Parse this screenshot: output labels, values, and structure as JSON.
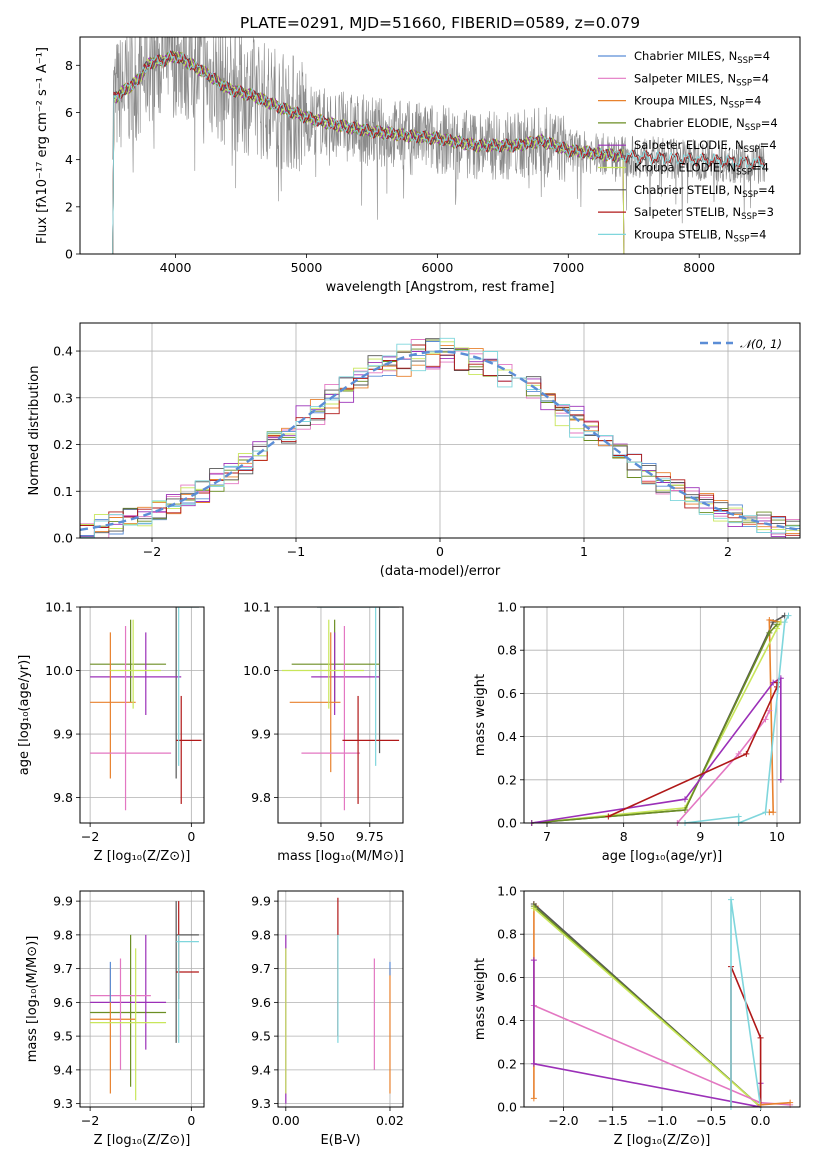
{
  "chart_data": [
    {
      "id": "spec",
      "type": "line",
      "title": "PLATE=0291, MJD=51660, FIBERID=0589, z=0.079",
      "xlabel": "wavelength [Angstrom, rest frame]",
      "ylabel": "Flux [f",
      "ylabel_full": "Flux [fλ10⁻¹⁷ erg cm⁻² s⁻¹ A⁻¹]",
      "xlim": [
        3270,
        8770
      ],
      "ylim": [
        0,
        9.2
      ],
      "xticks": [
        4000,
        5000,
        6000,
        7000,
        8000
      ],
      "yticks": [
        0,
        2,
        4,
        6,
        8
      ],
      "grid": false,
      "legend_position": "top-right",
      "legend": [
        {
          "name": "Chabrier MILES, N",
          "sub": "SSP",
          "tail": "=4",
          "color": "#5b8dd6"
        },
        {
          "name": "Salpeter MILES, N",
          "sub": "SSP",
          "tail": "=4",
          "color": "#e377c2"
        },
        {
          "name": "Kroupa MILES, N",
          "sub": "SSP",
          "tail": "=4",
          "color": "#e8812d"
        },
        {
          "name": "Chabrier ELODIE, N",
          "sub": "SSP",
          "tail": "=4",
          "color": "#6b8e23"
        },
        {
          "name": "Salpeter ELODIE, N",
          "sub": "SSP",
          "tail": "=4",
          "color": "#9b30b8"
        },
        {
          "name": "Kroupa ELODIE, N",
          "sub": "SSP",
          "tail": "=4",
          "color": "#c8e65a"
        },
        {
          "name": "Chabrier STELIB, N",
          "sub": "SSP",
          "tail": "=4",
          "color": "#555555"
        },
        {
          "name": "Salpeter STELIB, N",
          "sub": "SSP",
          "tail": "=3",
          "color": "#b01818"
        },
        {
          "name": "Kroupa STELIB, N",
          "sub": "SSP",
          "tail": "=4",
          "color": "#7fd6dc"
        }
      ],
      "continuum": [
        [
          3530,
          6.6
        ],
        [
          3700,
          7.3
        ],
        [
          3800,
          8.1
        ],
        [
          3900,
          8.2
        ],
        [
          4000,
          8.4
        ],
        [
          4100,
          8.1
        ],
        [
          4250,
          7.6
        ],
        [
          4400,
          7.0
        ],
        [
          4600,
          6.7
        ],
        [
          4800,
          6.2
        ],
        [
          5000,
          5.8
        ],
        [
          5200,
          5.5
        ],
        [
          5500,
          5.2
        ],
        [
          5800,
          5.0
        ],
        [
          6000,
          4.9
        ],
        [
          6300,
          4.6
        ],
        [
          6600,
          4.6
        ],
        [
          6800,
          4.8
        ],
        [
          7000,
          4.4
        ],
        [
          7300,
          4.2
        ],
        [
          7600,
          4.1
        ],
        [
          8000,
          4.0
        ],
        [
          8300,
          3.9
        ],
        [
          8500,
          3.85
        ]
      ],
      "data_start": 3520,
      "data_end": 8500,
      "model_start_ms": 3530,
      "model_end_ms": 7420,
      "model_start_st": 3530,
      "model_end_st": 8500
    },
    {
      "id": "hist",
      "type": "line",
      "xlabel": "(data-model)/error",
      "ylabel": "Normed distribution",
      "xlim": [
        -2.5,
        2.5
      ],
      "ylim": [
        0,
        0.46
      ],
      "xticks": [
        -2,
        -1,
        0,
        1,
        2
      ],
      "xtick_labels": [
        "−2",
        "−1",
        "0",
        "1",
        "2"
      ],
      "yticks": [
        0.0,
        0.1,
        0.2,
        0.3,
        0.4
      ],
      "ytick_labels": [
        "0.0",
        "0.1",
        "0.2",
        "0.3",
        "0.4"
      ],
      "grid": true,
      "legend": "𝒩(0, 1)",
      "bin_width": 0.1,
      "series": [
        {
          "color": "#5b8dd6"
        },
        {
          "color": "#e377c2"
        },
        {
          "color": "#e8812d"
        },
        {
          "color": "#6b8e23"
        },
        {
          "color": "#9b30b8"
        },
        {
          "color": "#c8e65a"
        },
        {
          "color": "#555555"
        },
        {
          "color": "#b01818"
        },
        {
          "color": "#7fd6dc"
        }
      ],
      "gauss_color": "#5b8dd6"
    },
    {
      "id": "ageZ",
      "type": "scatter",
      "xlabel": "Z [log₁₀(Z/Z⊙)]",
      "ylabel": "age  [log₁₀(age/yr)]",
      "xlim": [
        -2.2,
        0.25
      ],
      "ylim": [
        9.76,
        10.1
      ],
      "xticks": [
        -2,
        0
      ],
      "xtick_labels": [
        "−2",
        "0"
      ],
      "yticks": [
        9.8,
        9.9,
        10.0,
        10.1
      ],
      "ytick_labels": [
        "9.8",
        "9.9",
        "10.0",
        "10.1"
      ],
      "grid": true,
      "crosses": [
        {
          "x": -0.3,
          "y": 10.1,
          "x0": -0.3,
          "x1": 0.15,
          "y0": 9.83,
          "y1": 10.14,
          "color": "#555555"
        },
        {
          "x": -1.2,
          "y": 10.01,
          "x0": -2.0,
          "x1": -0.5,
          "y0": 9.95,
          "y1": 10.08,
          "color": "#6b8e23"
        },
        {
          "x": -0.9,
          "y": 9.99,
          "x0": -2.0,
          "x1": -0.2,
          "y0": 9.93,
          "y1": 10.06,
          "color": "#9b30b8"
        },
        {
          "x": -1.6,
          "y": 9.95,
          "x0": -2.0,
          "x1": -1.1,
          "y0": 9.83,
          "y1": 10.06,
          "color": "#e8812d"
        },
        {
          "x": -1.3,
          "y": 9.87,
          "x0": -2.0,
          "x1": -0.4,
          "y0": 9.78,
          "y1": 10.07,
          "color": "#e377c2"
        },
        {
          "x": -0.2,
          "y": 9.89,
          "x0": -0.3,
          "x1": 0.2,
          "y0": 9.79,
          "y1": 9.96,
          "color": "#b01818"
        },
        {
          "x": -0.25,
          "y": 10.1,
          "x0": -0.3,
          "x1": 0.15,
          "y0": 9.85,
          "y1": 10.12,
          "color": "#7fd6dc"
        },
        {
          "x": -1.15,
          "y": 10.0,
          "x0": -1.6,
          "x1": -0.6,
          "y0": 9.94,
          "y1": 10.08,
          "color": "#c8e65a"
        }
      ]
    },
    {
      "id": "ageM",
      "type": "scatter",
      "xlabel": "mass [log₁₀(M/M⊙)]",
      "ylabel": "",
      "xlim": [
        9.28,
        9.92
      ],
      "ylim": [
        9.76,
        10.1
      ],
      "xticks": [
        9.5,
        9.75
      ],
      "xtick_labels": [
        "9.50",
        "9.75"
      ],
      "yticks": [
        9.8,
        9.9,
        10.0,
        10.1
      ],
      "ytick_labels": [
        "9.8",
        "9.9",
        "10.0",
        "10.1"
      ],
      "grid": true,
      "crosses": [
        {
          "x": 9.8,
          "y": 10.1,
          "x0": 9.48,
          "x1": 9.9,
          "y0": 9.87,
          "y1": 10.14,
          "color": "#555555"
        },
        {
          "x": 9.57,
          "y": 10.01,
          "x0": 9.35,
          "x1": 9.8,
          "y0": 9.95,
          "y1": 10.08,
          "color": "#6b8e23"
        },
        {
          "x": 9.57,
          "y": 9.99,
          "x0": 9.45,
          "x1": 9.8,
          "y0": 9.93,
          "y1": 10.06,
          "color": "#9b30b8"
        },
        {
          "x": 9.55,
          "y": 9.95,
          "x0": 9.34,
          "x1": 9.6,
          "y0": 9.84,
          "y1": 10.06,
          "color": "#e8812d"
        },
        {
          "x": 9.62,
          "y": 9.87,
          "x0": 9.4,
          "x1": 9.7,
          "y0": 9.78,
          "y1": 10.07,
          "color": "#e377c2"
        },
        {
          "x": 9.69,
          "y": 9.89,
          "x0": 9.61,
          "x1": 9.9,
          "y0": 9.79,
          "y1": 9.96,
          "color": "#b01818"
        },
        {
          "x": 9.78,
          "y": 10.1,
          "x0": 9.48,
          "x1": 9.88,
          "y0": 9.85,
          "y1": 10.12,
          "color": "#7fd6dc"
        },
        {
          "x": 9.54,
          "y": 10.0,
          "x0": 9.3,
          "x1": 9.72,
          "y0": 9.94,
          "y1": 10.08,
          "color": "#c8e65a"
        }
      ]
    },
    {
      "id": "mwAge",
      "type": "line",
      "xlabel": "age  [log₁₀(age/yr)]",
      "ylabel": "mass weight",
      "xlim": [
        6.7,
        10.3
      ],
      "ylim": [
        0,
        1.0
      ],
      "xticks": [
        7,
        8,
        9,
        10
      ],
      "xtick_labels": [
        "7",
        "8",
        "9",
        "10"
      ],
      "yticks": [
        0.0,
        0.2,
        0.4,
        0.6,
        0.8,
        1.0
      ],
      "ytick_labels": [
        "0.0",
        "0.2",
        "0.4",
        "0.6",
        "0.8",
        "1.0"
      ],
      "grid": true,
      "series": [
        {
          "color": "#555555",
          "x": [
            6.8,
            8.8,
            9.95,
            10.1
          ],
          "y": [
            0.0,
            0.06,
            0.93,
            0.96
          ]
        },
        {
          "color": "#e8812d",
          "x": [
            9.9,
            9.95,
            9.9,
            10.05
          ],
          "y": [
            0.05,
            0.05,
            0.94,
            0.93
          ]
        },
        {
          "color": "#c8e65a",
          "x": [
            6.8,
            8.8,
            10.0,
            10.05
          ],
          "y": [
            0.0,
            0.07,
            0.9,
            0.93
          ]
        },
        {
          "color": "#6b8e23",
          "x": [
            6.8,
            8.8,
            9.9,
            10.0
          ],
          "y": [
            0.0,
            0.06,
            0.88,
            0.92
          ]
        },
        {
          "color": "#9b30b8",
          "x": [
            6.8,
            8.8,
            9.95,
            10.05,
            10.05
          ],
          "y": [
            0.0,
            0.11,
            0.65,
            0.67,
            0.2
          ]
        },
        {
          "color": "#e377c2",
          "x": [
            8.7,
            9.5,
            9.85,
            9.9
          ],
          "y": [
            0.0,
            0.32,
            0.48,
            0.52
          ]
        },
        {
          "color": "#b01818",
          "x": [
            7.8,
            9.6,
            10.0,
            10.0
          ],
          "y": [
            0.03,
            0.32,
            0.63,
            0.65
          ]
        },
        {
          "color": "#7fd6dc",
          "x": [
            8.8,
            9.5,
            9.5,
            9.85,
            10.1,
            10.15
          ],
          "y": [
            0.0,
            0.03,
            0.0,
            0.05,
            0.93,
            0.96
          ]
        }
      ]
    },
    {
      "id": "massZ",
      "type": "scatter",
      "xlabel": "Z [log₁₀(Z/Z⊙)]",
      "ylabel": "mass [log₁₀(M/M⊙)]",
      "xlim": [
        -2.2,
        0.25
      ],
      "ylim": [
        9.29,
        9.93
      ],
      "xticks": [
        -2,
        0
      ],
      "xtick_labels": [
        "−2",
        "0"
      ],
      "yticks": [
        9.3,
        9.4,
        9.5,
        9.6,
        9.7,
        9.8,
        9.9
      ],
      "ytick_labels": [
        "9.3",
        "9.4",
        "9.5",
        "9.6",
        "9.7",
        "9.8",
        "9.9"
      ],
      "grid": true,
      "crosses": [
        {
          "x": -0.3,
          "y": 9.8,
          "x0": -0.3,
          "x1": 0.15,
          "y0": 9.48,
          "y1": 9.9,
          "color": "#555555"
        },
        {
          "x": -1.2,
          "y": 9.57,
          "x0": -2.0,
          "x1": -0.5,
          "y0": 9.35,
          "y1": 9.8,
          "color": "#6b8e23"
        },
        {
          "x": -0.9,
          "y": 9.6,
          "x0": -2.0,
          "x1": -0.5,
          "y0": 9.46,
          "y1": 9.8,
          "color": "#9b30b8"
        },
        {
          "x": -1.6,
          "y": 9.55,
          "x0": -2.0,
          "x1": -1.1,
          "y0": 9.33,
          "y1": 9.7,
          "color": "#e8812d"
        },
        {
          "x": -1.4,
          "y": 9.62,
          "x0": -2.0,
          "x1": -0.8,
          "y0": 9.4,
          "y1": 9.73,
          "color": "#e377c2"
        },
        {
          "x": -0.25,
          "y": 9.69,
          "x0": -0.3,
          "x1": 0.15,
          "y0": 9.61,
          "y1": 9.9,
          "color": "#b01818"
        },
        {
          "x": -0.25,
          "y": 9.78,
          "x0": -0.3,
          "x1": 0.15,
          "y0": 9.48,
          "y1": 9.8,
          "color": "#7fd6dc"
        },
        {
          "x": -1.1,
          "y": 9.54,
          "x0": -2.0,
          "x1": -0.5,
          "y0": 9.31,
          "y1": 9.76,
          "color": "#c8e65a"
        },
        {
          "x": -1.6,
          "y": 9.71,
          "x0": -1.6,
          "x1": -1.6,
          "y0": 9.6,
          "y1": 9.72,
          "color": "#5b8dd6"
        }
      ]
    },
    {
      "id": "massEBV",
      "type": "scatter",
      "xlabel": "E(B-V)",
      "ylabel": "",
      "xlim": [
        -0.0015,
        0.0225
      ],
      "ylim": [
        9.29,
        9.93
      ],
      "xticks": [
        0.0,
        0.02
      ],
      "xtick_labels": [
        "0.00",
        "0.02"
      ],
      "yticks": [
        9.3,
        9.4,
        9.5,
        9.6,
        9.7,
        9.8,
        9.9
      ],
      "ytick_labels": [
        "9.3",
        "9.4",
        "9.5",
        "9.6",
        "9.7",
        "9.8",
        "9.9"
      ],
      "grid": true,
      "crosses": [
        {
          "x": 0.0,
          "y": 9.7,
          "x0": 0.0,
          "x1": 0.0,
          "y0": 9.3,
          "y1": 9.8,
          "color": "#9b30b8"
        },
        {
          "x": 0.0,
          "y": 9.6,
          "x0": 0.0,
          "x1": 0.0,
          "y0": 9.33,
          "y1": 9.76,
          "color": "#c8e65a"
        },
        {
          "x": 0.01,
          "y": 9.81,
          "x0": 0.01,
          "x1": 0.01,
          "y0": 9.5,
          "y1": 9.91,
          "color": "#b01818"
        },
        {
          "x": 0.01,
          "y": 9.7,
          "x0": 0.01,
          "x1": 0.01,
          "y0": 9.48,
          "y1": 9.8,
          "color": "#7fd6dc"
        },
        {
          "x": 0.017,
          "y": 9.6,
          "x0": 0.017,
          "x1": 0.017,
          "y0": 9.4,
          "y1": 9.73,
          "color": "#e377c2"
        },
        {
          "x": 0.02,
          "y": 9.55,
          "x0": 0.02,
          "x1": 0.02,
          "y0": 9.33,
          "y1": 9.7,
          "color": "#e8812d"
        },
        {
          "x": 0.02,
          "y": 9.7,
          "x0": 0.02,
          "x1": 0.02,
          "y0": 9.68,
          "y1": 9.72,
          "color": "#5b8dd6"
        }
      ]
    },
    {
      "id": "mwZ",
      "type": "line",
      "xlabel": "Z [log₁₀(Z/Z⊙)]",
      "ylabel": "mass weight",
      "xlim": [
        -2.4,
        0.4
      ],
      "ylim": [
        0,
        1.0
      ],
      "xticks": [
        -2.0,
        -1.5,
        -1.0,
        -0.5,
        0.0
      ],
      "xtick_labels": [
        "−2.0",
        "−1.5",
        "−1.0",
        "−0.5",
        "0.0"
      ],
      "yticks": [
        0.0,
        0.2,
        0.4,
        0.6,
        0.8,
        1.0
      ],
      "ytick_labels": [
        "0.0",
        "0.2",
        "0.4",
        "0.6",
        "0.8",
        "1.0"
      ],
      "grid": true,
      "series": [
        {
          "color": "#e8812d",
          "x": [
            -2.3,
            -2.3,
            -2.28
          ],
          "y": [
            0.04,
            0.94,
            0.93
          ]
        },
        {
          "color": "#555555",
          "x": [
            -2.3,
            0.0
          ],
          "y": [
            0.94,
            0.0
          ]
        },
        {
          "color": "#6b8e23",
          "x": [
            -2.3,
            0.0
          ],
          "y": [
            0.93,
            0.0
          ]
        },
        {
          "color": "#c8e65a",
          "x": [
            -2.3,
            0.0
          ],
          "y": [
            0.92,
            0.0
          ]
        },
        {
          "color": "#e377c2",
          "x": [
            -2.3,
            0.0,
            0.3
          ],
          "y": [
            0.47,
            0.02,
            0.01
          ]
        },
        {
          "color": "#9b30b8",
          "x": [
            -2.3,
            -2.3,
            0.0,
            0.0
          ],
          "y": [
            0.68,
            0.2,
            0.0,
            0.11
          ]
        },
        {
          "color": "#b01818",
          "x": [
            -0.3,
            -0.3,
            0.0,
            0.0
          ],
          "y": [
            0.0,
            0.65,
            0.32,
            0.0
          ]
        },
        {
          "color": "#7fd6dc",
          "x": [
            -0.3,
            -0.3,
            0.0
          ],
          "y": [
            0.0,
            0.96,
            0.0
          ]
        },
        {
          "color": "#e8812d",
          "x": [
            0.0,
            0.3
          ],
          "y": [
            0.01,
            0.02
          ]
        }
      ]
    }
  ]
}
